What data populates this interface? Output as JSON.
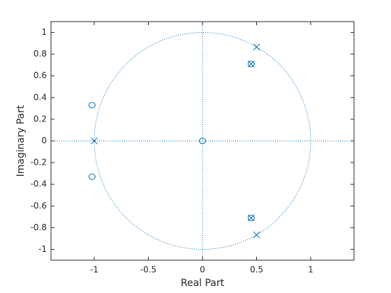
{
  "chart_data": {
    "type": "scatter",
    "x_label": "Real Part",
    "y_label": "Imaginary Part",
    "xlim": [
      -1.4,
      1.4
    ],
    "ylim": [
      -1.1,
      1.1
    ],
    "xticks": [
      -1,
      -0.5,
      0,
      0.5,
      1
    ],
    "yticks": [
      -1,
      -0.8,
      -0.6,
      -0.4,
      -0.2,
      0,
      0.2,
      0.4,
      0.6,
      0.8,
      1
    ],
    "unit_circle": true,
    "series": [
      {
        "marker": "o",
        "color": "#0072BD",
        "x": [
          -1.02,
          -1.02,
          0,
          0.45,
          0.45
        ],
        "values": [
          0.33,
          -0.33,
          0,
          0.71,
          -0.71
        ]
      },
      {
        "marker": "x",
        "color": "#0072BD",
        "x": [
          0.5,
          0.5,
          -1,
          0.45,
          0.45
        ],
        "values": [
          0.866,
          -0.866,
          0,
          0.71,
          -0.71
        ]
      }
    ]
  }
}
